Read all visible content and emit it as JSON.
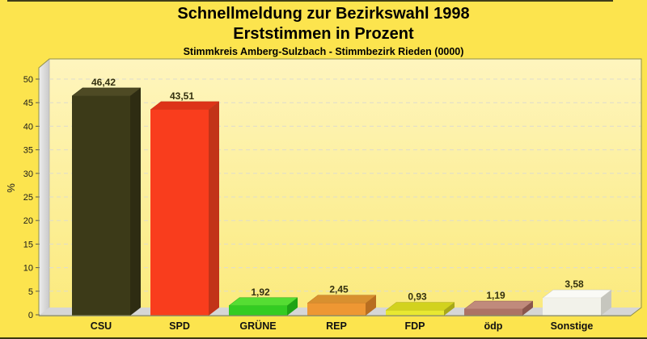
{
  "page": {
    "background": "#FCE44E",
    "top_rule_color": "#3F3C1A",
    "bottom_rule_color": "#3B3810"
  },
  "chart_data": {
    "type": "bar",
    "title": "Schnellmeldung zur Bezirkswahl 1998",
    "subtitle": "Erststimmen in Prozent",
    "caption": "Stimmkreis Amberg-Sulzbach - Stimmbezirk Rieden (0000)",
    "ylabel": "%",
    "ylim": [
      0,
      50
    ],
    "ytick_step": 5,
    "grid": "dashed-horizontal",
    "legend": "none",
    "style_3d": true,
    "categories": [
      "CSU",
      "SPD",
      "GRÜNE",
      "REP",
      "FDP",
      "ödp",
      "Sonstige"
    ],
    "values": [
      46.42,
      43.51,
      1.92,
      2.45,
      0.93,
      1.19,
      3.58
    ],
    "value_labels": [
      "46,42",
      "43,51",
      "1,92",
      "2,45",
      "0,93",
      "1,19",
      "3,58"
    ],
    "bar_colors": [
      {
        "front": "#3C3A18",
        "side": "#2E2C12",
        "top": "#4E4A24"
      },
      {
        "front": "#F93D1D",
        "side": "#C23318",
        "top": "#DD3318"
      },
      {
        "front": "#33CC22",
        "side": "#1FA315",
        "top": "#55DD33"
      },
      {
        "front": "#EE9733",
        "side": "#B86E20",
        "top": "#D8902F"
      },
      {
        "front": "#E8E832",
        "side": "#A8A818",
        "top": "#D2D21E"
      },
      {
        "front": "#AC7265",
        "side": "#8A564C",
        "top": "#C08A7C"
      },
      {
        "front": "#F2F2EA",
        "side": "#C6C6BE",
        "top": "#FAFAF6"
      }
    ],
    "styles": {
      "plot_bg_top": "#FEF5BE",
      "plot_bg_bottom": "#FBEA7C",
      "wall_light": "#EDEDED",
      "wall_dark": "#C9C9C9",
      "wall_seam": "#B5B5B5",
      "floor": "#D6D6D6",
      "floor_edge": "#9C9C9C",
      "border": "#8F8F4D",
      "gridline": "#DEDCCE",
      "tick": "#555555",
      "tick_label": "#1A1A1A",
      "value_label": "#33300F",
      "category_label": "#111111",
      "ylabel_color": "#222222"
    }
  }
}
